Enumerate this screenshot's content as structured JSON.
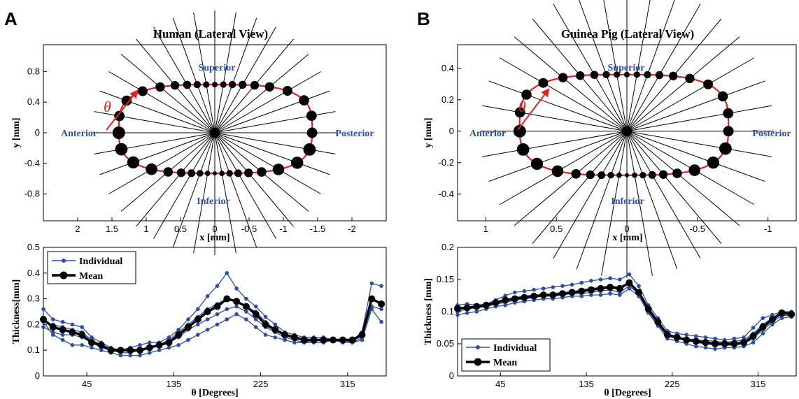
{
  "figure": {
    "panels": [
      {
        "letter": "A",
        "title": "Human (Lateral View)"
      },
      {
        "letter": "B",
        "title": "Guinea Pig (Lateral View)"
      }
    ],
    "regions": {
      "superior": "Superior",
      "inferior": "Inferior",
      "anterior": "Anterior",
      "posterior": "Posterior"
    },
    "theta_symbol": "θ",
    "legend": {
      "individual": "Individual",
      "mean": "Mean"
    }
  },
  "colors": {
    "individual": "#2b4fa8",
    "mean": "#000000",
    "contour": "#e0231c",
    "region_text": "#2b4fa8"
  },
  "chart_data": [
    {
      "id": "A-top",
      "type": "scatter",
      "title": "Human (Lateral View)",
      "xlabel": "x [mm]",
      "ylabel": "y [mm]",
      "xlim": [
        2.5,
        -2.5
      ],
      "ylim": [
        -1.15,
        1.15
      ],
      "x_reversed": true,
      "xticks": [
        2,
        1.5,
        1,
        0.5,
        0,
        -0.5,
        -1,
        -1.5,
        -2
      ],
      "xtick_labels": [
        "2",
        "1.5",
        "1",
        "0.5",
        "0",
        "-0.5",
        "-1",
        "-1.5",
        "-2"
      ],
      "yticks": [
        0.8,
        0.4,
        0,
        -0.4,
        -0.8
      ],
      "ytick_labels": [
        "0.8",
        "0.4",
        "0",
        "-0.4",
        "-0.8"
      ],
      "contour": {
        "x_anterior": 1.4,
        "x_posterior": -1.42,
        "y_top": 0.63,
        "y_bottom": -0.53
      },
      "ray_count": 36,
      "point_count": 36
    },
    {
      "id": "B-top",
      "type": "scatter",
      "title": "Guinea Pig (Lateral View)",
      "xlabel": "x [mm]",
      "ylabel": "y [mm]",
      "xlim": [
        1.2,
        -1.2
      ],
      "ylim": [
        -0.57,
        0.55
      ],
      "x_reversed": true,
      "xticks": [
        1,
        0.5,
        0,
        -0.5,
        -1
      ],
      "xtick_labels": [
        "1",
        "0.5",
        "0",
        "-0.5",
        "-1"
      ],
      "yticks": [
        0.4,
        0.2,
        0,
        -0.2,
        -0.4
      ],
      "ytick_labels": [
        "0.4",
        "0.2",
        "0",
        "-0.2",
        "-0.4"
      ],
      "contour": {
        "x_anterior": 0.76,
        "x_posterior": -0.72,
        "y_top": 0.36,
        "y_bottom": -0.28
      },
      "ray_count": 36,
      "point_count": 36
    },
    {
      "id": "A-bottom",
      "type": "line",
      "xlabel": "θ [Degrees]",
      "ylabel": "Thickness[mm]",
      "xlim": [
        0,
        355
      ],
      "ylim": [
        0,
        0.5
      ],
      "xticks": [
        45,
        135,
        225,
        315
      ],
      "xtick_labels": [
        "45",
        "135",
        "225",
        "315"
      ],
      "yticks": [
        0,
        0.1,
        0.2,
        0.3,
        0.4,
        0.5
      ],
      "ytick_labels": [
        "0",
        "0.1",
        "0.2",
        "0.3",
        "0.4",
        "0.5"
      ],
      "legend_position": "top-left",
      "x": [
        0,
        10,
        20,
        30,
        40,
        50,
        60,
        70,
        80,
        90,
        100,
        110,
        120,
        130,
        140,
        150,
        160,
        170,
        180,
        190,
        200,
        210,
        220,
        230,
        240,
        250,
        260,
        270,
        280,
        290,
        300,
        310,
        320,
        330,
        340,
        350
      ],
      "series": [
        {
          "name": "Individual",
          "values": [
            0.26,
            0.22,
            0.21,
            0.2,
            0.19,
            0.15,
            0.13,
            0.11,
            0.1,
            0.11,
            0.12,
            0.13,
            0.13,
            0.15,
            0.18,
            0.22,
            0.26,
            0.31,
            0.35,
            0.4,
            0.34,
            0.3,
            0.27,
            0.23,
            0.2,
            0.17,
            0.16,
            0.15,
            0.15,
            0.15,
            0.14,
            0.14,
            0.14,
            0.17,
            0.36,
            0.35
          ]
        },
        {
          "name": "Individual",
          "values": [
            0.21,
            0.2,
            0.19,
            0.18,
            0.17,
            0.14,
            0.12,
            0.1,
            0.1,
            0.1,
            0.1,
            0.11,
            0.12,
            0.14,
            0.17,
            0.2,
            0.23,
            0.26,
            0.28,
            0.3,
            0.29,
            0.27,
            0.25,
            0.21,
            0.18,
            0.16,
            0.15,
            0.14,
            0.14,
            0.14,
            0.14,
            0.14,
            0.14,
            0.16,
            0.3,
            0.28
          ]
        },
        {
          "name": "Individual",
          "values": [
            0.19,
            0.17,
            0.16,
            0.16,
            0.15,
            0.13,
            0.11,
            0.1,
            0.09,
            0.09,
            0.1,
            0.11,
            0.12,
            0.13,
            0.15,
            0.18,
            0.2,
            0.22,
            0.24,
            0.26,
            0.27,
            0.25,
            0.22,
            0.19,
            0.17,
            0.15,
            0.14,
            0.13,
            0.14,
            0.14,
            0.14,
            0.14,
            0.13,
            0.15,
            0.27,
            0.26
          ]
        },
        {
          "name": "Individual",
          "values": [
            0.21,
            0.16,
            0.14,
            0.12,
            0.12,
            0.11,
            0.1,
            0.09,
            0.08,
            0.08,
            0.08,
            0.09,
            0.1,
            0.11,
            0.12,
            0.14,
            0.16,
            0.18,
            0.2,
            0.22,
            0.24,
            0.22,
            0.19,
            0.16,
            0.15,
            0.14,
            0.13,
            0.13,
            0.13,
            0.13,
            0.14,
            0.13,
            0.13,
            0.14,
            0.26,
            0.21
          ]
        },
        {
          "name": "Mean",
          "values": [
            0.22,
            0.19,
            0.18,
            0.17,
            0.16,
            0.13,
            0.12,
            0.1,
            0.1,
            0.1,
            0.1,
            0.11,
            0.12,
            0.13,
            0.16,
            0.19,
            0.22,
            0.25,
            0.27,
            0.3,
            0.29,
            0.27,
            0.24,
            0.2,
            0.18,
            0.16,
            0.15,
            0.14,
            0.14,
            0.14,
            0.14,
            0.14,
            0.14,
            0.16,
            0.3,
            0.28
          ]
        }
      ]
    },
    {
      "id": "B-bottom",
      "type": "line",
      "xlabel": "θ [Degrees]",
      "ylabel": "Thickness [mm]",
      "xlim": [
        0,
        355
      ],
      "ylim": [
        0,
        0.2
      ],
      "xticks": [
        45,
        135,
        225,
        315
      ],
      "xtick_labels": [
        "45",
        "135",
        "225",
        "315"
      ],
      "yticks": [
        0,
        0.05,
        0.1,
        0.15,
        0.2
      ],
      "ytick_labels": [
        "0",
        "0.05",
        "0.1",
        "0.15",
        "0.2"
      ],
      "legend_position": "bottom-left",
      "x": [
        0,
        10,
        20,
        30,
        40,
        50,
        60,
        70,
        80,
        90,
        100,
        110,
        120,
        130,
        140,
        150,
        160,
        170,
        180,
        190,
        200,
        210,
        220,
        230,
        240,
        250,
        260,
        270,
        280,
        290,
        300,
        310,
        320,
        330,
        340,
        350
      ],
      "series": [
        {
          "name": "Individual",
          "values": [
            0.11,
            0.112,
            0.11,
            0.112,
            0.118,
            0.125,
            0.13,
            0.132,
            0.134,
            0.136,
            0.138,
            0.14,
            0.142,
            0.145,
            0.148,
            0.15,
            0.152,
            0.15,
            0.158,
            0.14,
            0.11,
            0.09,
            0.07,
            0.066,
            0.064,
            0.062,
            0.06,
            0.058,
            0.056,
            0.058,
            0.06,
            0.075,
            0.09,
            0.095,
            0.1,
            0.1
          ]
        },
        {
          "name": "Individual",
          "values": [
            0.105,
            0.106,
            0.108,
            0.11,
            0.114,
            0.118,
            0.122,
            0.124,
            0.126,
            0.126,
            0.128,
            0.13,
            0.13,
            0.134,
            0.136,
            0.138,
            0.14,
            0.138,
            0.146,
            0.13,
            0.105,
            0.085,
            0.065,
            0.06,
            0.058,
            0.056,
            0.055,
            0.054,
            0.052,
            0.054,
            0.056,
            0.066,
            0.08,
            0.09,
            0.1,
            0.098
          ]
        },
        {
          "name": "Individual",
          "values": [
            0.1,
            0.104,
            0.106,
            0.108,
            0.112,
            0.114,
            0.118,
            0.12,
            0.122,
            0.124,
            0.124,
            0.126,
            0.128,
            0.128,
            0.13,
            0.132,
            0.134,
            0.13,
            0.14,
            0.128,
            0.1,
            0.08,
            0.062,
            0.058,
            0.056,
            0.052,
            0.05,
            0.048,
            0.048,
            0.048,
            0.05,
            0.058,
            0.072,
            0.084,
            0.094,
            0.094
          ]
        },
        {
          "name": "Individual",
          "values": [
            0.095,
            0.098,
            0.1,
            0.104,
            0.108,
            0.11,
            0.114,
            0.116,
            0.118,
            0.12,
            0.12,
            0.122,
            0.124,
            0.124,
            0.126,
            0.126,
            0.128,
            0.126,
            0.136,
            0.124,
            0.098,
            0.078,
            0.058,
            0.054,
            0.05,
            0.046,
            0.044,
            0.042,
            0.044,
            0.044,
            0.046,
            0.052,
            0.066,
            0.08,
            0.09,
            0.092
          ]
        },
        {
          "name": "Mean",
          "values": [
            0.105,
            0.106,
            0.108,
            0.11,
            0.114,
            0.118,
            0.12,
            0.122,
            0.124,
            0.126,
            0.126,
            0.128,
            0.13,
            0.132,
            0.134,
            0.136,
            0.138,
            0.136,
            0.145,
            0.13,
            0.104,
            0.084,
            0.064,
            0.06,
            0.056,
            0.054,
            0.052,
            0.05,
            0.05,
            0.05,
            0.052,
            0.062,
            0.076,
            0.088,
            0.098,
            0.096
          ]
        }
      ]
    }
  ]
}
